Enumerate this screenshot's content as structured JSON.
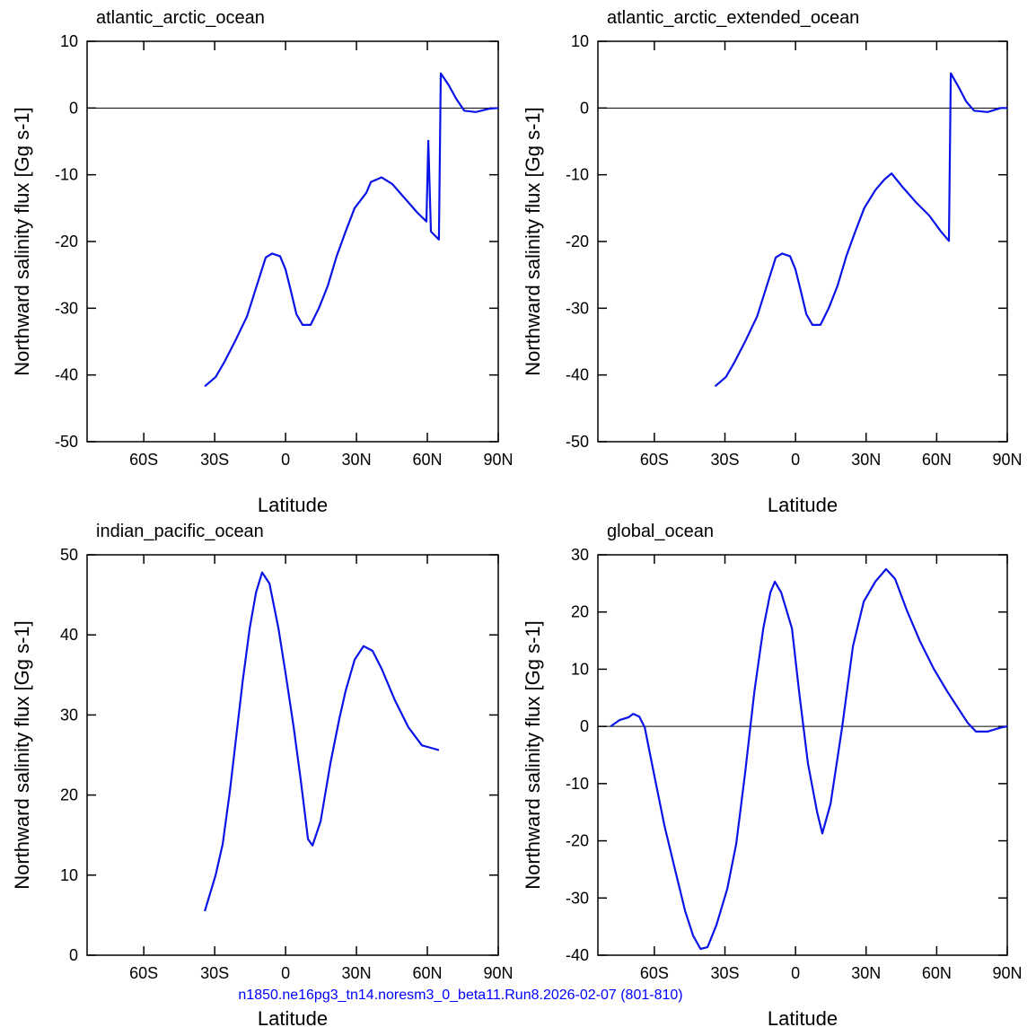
{
  "chart_data": [
    {
      "type": "line",
      "title": "atlantic_arctic_ocean",
      "x_label": "Latitude",
      "y_label": "Northward salinity flux [Gg s-1]",
      "color": "#0a14e6",
      "zero_line": true,
      "xlim": [
        -84,
        90
      ],
      "xticks": [
        {
          "value": -60,
          "label": "60S"
        },
        {
          "value": -30,
          "label": "30S"
        },
        0,
        {
          "value": 30,
          "label": "30N"
        },
        {
          "value": 60,
          "label": "60N"
        },
        {
          "value": 90,
          "label": "90N"
        }
      ],
      "ylim": [
        -50,
        10
      ],
      "yticks": [
        10,
        0,
        -10,
        -20,
        -30,
        -40,
        -50
      ],
      "x": [
        -34.2,
        -29.6,
        -25.8,
        -21.3,
        -16.3,
        -11.8,
        -8.4,
        -5.7,
        -2.3,
        0,
        2.3,
        4.6,
        7.2,
        10.6,
        14.1,
        17.9,
        21.6,
        25.4,
        29.2,
        34.2,
        36.1,
        40.6,
        45.2,
        50.1,
        55.8,
        59.6,
        60.4,
        61.5,
        64.9,
        65.7,
        69.1,
        72.2,
        75.6,
        80.5,
        86.2,
        90
      ],
      "values": [
        -41.7,
        -40.3,
        -38.0,
        -34.9,
        -31.2,
        -26.2,
        -22.4,
        -21.8,
        -22.2,
        -24.2,
        -27.5,
        -30.9,
        -32.5,
        -32.5,
        -30.0,
        -26.6,
        -22.2,
        -18.5,
        -15.0,
        -12.7,
        -11.1,
        -10.4,
        -11.4,
        -13.4,
        -15.7,
        -17.0,
        -4.9,
        -18.5,
        -19.7,
        5.2,
        3.4,
        1.4,
        -0.4,
        -0.6,
        -0.1,
        0.0
      ]
    },
    {
      "type": "line",
      "title": "atlantic_arctic_extended_ocean",
      "x_label": "Latitude",
      "y_label": "Northward salinity flux [Gg s-1]",
      "color": "#0a14e6",
      "zero_line": true,
      "xlim": [
        -84,
        90
      ],
      "xticks": [
        {
          "value": -60,
          "label": "60S"
        },
        {
          "value": -30,
          "label": "30S"
        },
        0,
        {
          "value": 30,
          "label": "30N"
        },
        {
          "value": 60,
          "label": "60N"
        },
        {
          "value": 90,
          "label": "90N"
        }
      ],
      "ylim": [
        -50,
        10
      ],
      "yticks": [
        10,
        0,
        -10,
        -20,
        -30,
        -40,
        -50
      ],
      "x": [
        -34.2,
        -29.6,
        -25.8,
        -21.3,
        -16.3,
        -11.8,
        -8.4,
        -5.7,
        -2.3,
        0,
        2.3,
        4.6,
        7.2,
        10.6,
        14.1,
        17.9,
        21.6,
        25.4,
        29.2,
        33.9,
        37.8,
        40.8,
        45.4,
        51.1,
        56.8,
        61.8,
        65.2,
        66.0,
        69.4,
        72.5,
        75.9,
        81.6,
        87.3,
        90
      ],
      "values": [
        -41.7,
        -40.3,
        -38.0,
        -34.9,
        -31.2,
        -26.2,
        -22.4,
        -21.8,
        -22.2,
        -24.2,
        -27.5,
        -30.9,
        -32.5,
        -32.5,
        -30.0,
        -26.6,
        -22.2,
        -18.5,
        -15.0,
        -12.3,
        -10.7,
        -9.8,
        -11.8,
        -14.1,
        -16.1,
        -18.5,
        -19.9,
        5.2,
        3.1,
        1.0,
        -0.4,
        -0.6,
        0.0,
        0.0
      ]
    },
    {
      "type": "line",
      "title": "indian_pacific_ocean",
      "x_label": "Latitude",
      "y_label": "Northward salinity flux [Gg s-1]",
      "color": "#0a14e6",
      "zero_line": false,
      "xlim": [
        -84,
        90
      ],
      "xticks": [
        {
          "value": -60,
          "label": "60S"
        },
        {
          "value": -30,
          "label": "30S"
        },
        0,
        {
          "value": 30,
          "label": "30N"
        },
        {
          "value": 60,
          "label": "60N"
        },
        {
          "value": 90,
          "label": "90N"
        }
      ],
      "ylim": [
        0,
        50
      ],
      "yticks": [
        50,
        40,
        30,
        20,
        10,
        0
      ],
      "x": [
        -34.2,
        -29.6,
        -26.6,
        -23.5,
        -21.3,
        -18.2,
        -15.2,
        -12.5,
        -9.9,
        -6.8,
        -3.0,
        0,
        3.4,
        6.5,
        9.5,
        11.4,
        14.8,
        19.0,
        22.8,
        25.4,
        29.2,
        33.0,
        36.8,
        40.6,
        46.3,
        51.9,
        57.7,
        61.5,
        64.9
      ],
      "values": [
        5.5,
        10.0,
        13.9,
        20.6,
        26.2,
        34.1,
        40.8,
        45.3,
        47.8,
        46.4,
        40.8,
        35.2,
        28.5,
        21.7,
        14.5,
        13.7,
        16.7,
        24.0,
        29.6,
        33.0,
        36.9,
        38.6,
        38.0,
        35.8,
        31.8,
        28.5,
        26.2,
        25.9,
        25.6
      ]
    },
    {
      "type": "line",
      "title": "global_ocean",
      "x_label": "Latitude",
      "y_label": "Northward salinity flux [Gg s-1]",
      "color": "#0a14e6",
      "zero_line": true,
      "xlim": [
        -84,
        90
      ],
      "xticks": [
        {
          "value": -60,
          "label": "60S"
        },
        {
          "value": -30,
          "label": "30S"
        },
        0,
        {
          "value": 30,
          "label": "30N"
        },
        {
          "value": 60,
          "label": "60N"
        },
        {
          "value": 90,
          "label": "90N"
        }
      ],
      "ylim": [
        -40,
        30
      ],
      "yticks": [
        30,
        20,
        10,
        0,
        -10,
        -20,
        -30,
        -40
      ],
      "x": [
        -78.6,
        -74.8,
        -70.9,
        -69.0,
        -66.4,
        -64.1,
        -60.3,
        -55.7,
        -51.1,
        -46.9,
        -43.5,
        -40.4,
        -37.4,
        -33.6,
        -29.0,
        -25.2,
        -21.4,
        -17.5,
        -13.7,
        -10.7,
        -8.8,
        -6.1,
        -1.5,
        1.5,
        5.3,
        9.2,
        11.4,
        14.9,
        19.8,
        24.4,
        29.0,
        33.9,
        38.5,
        42.3,
        47.3,
        53.0,
        58.7,
        64.5,
        69.4,
        73.2,
        76.7,
        81.6,
        87.3,
        90
      ],
      "values": [
        0,
        1.1,
        1.6,
        2.2,
        1.7,
        -0.2,
        -8.0,
        -17.4,
        -25.2,
        -32.3,
        -36.6,
        -38.9,
        -38.6,
        -34.7,
        -28.4,
        -20.5,
        -8.0,
        6.1,
        17.1,
        23.4,
        25.3,
        23.4,
        17.1,
        6.1,
        -6.5,
        -15.0,
        -18.7,
        -13.5,
        -0.2,
        14.0,
        21.8,
        25.3,
        27.5,
        25.8,
        20.3,
        14.8,
        10.1,
        6.1,
        3.0,
        0.6,
        -0.9,
        -0.9,
        -0.2,
        0
      ]
    }
  ],
  "footer": "n1850.ne16pg3_tn14.noresm3_0_beta11.Run8.2026-02-07 (801-810)"
}
